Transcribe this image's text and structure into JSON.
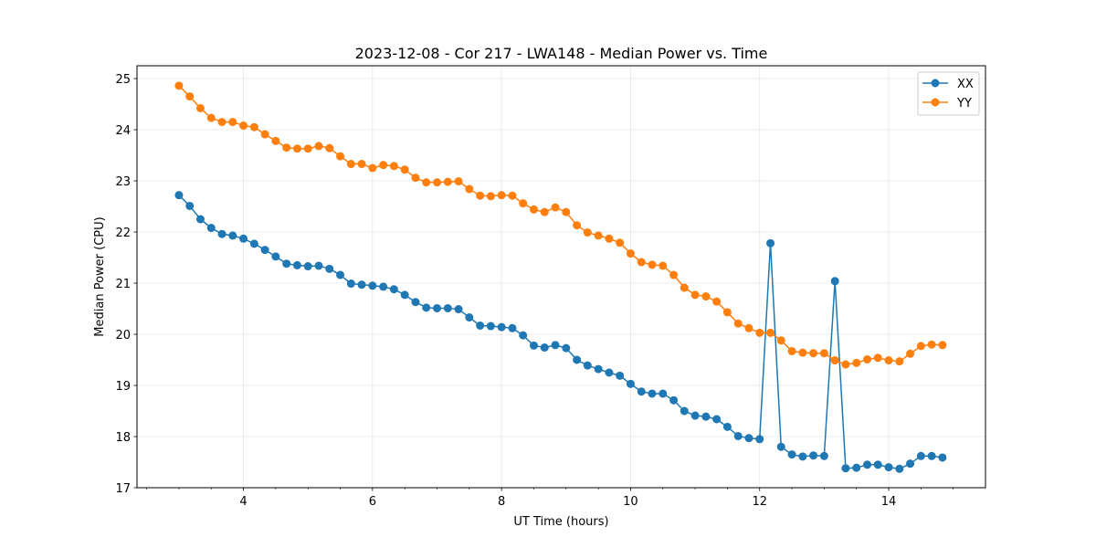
{
  "chart_data": {
    "type": "line",
    "title": "2023-12-08 - Cor 217 - LWA148 - Median Power vs. Time",
    "xlabel": "UT Time (hours)",
    "ylabel": "Median Power (CPU)",
    "xlim": [
      2.35,
      15.5
    ],
    "ylim": [
      17,
      25.25
    ],
    "xticks": [
      4,
      6,
      8,
      10,
      12,
      14
    ],
    "yticks": [
      17,
      18,
      19,
      20,
      21,
      22,
      23,
      24,
      25
    ],
    "grid": true,
    "legend_position": "top-right",
    "x": [
      3.0,
      3.167,
      3.333,
      3.5,
      3.667,
      3.833,
      4.0,
      4.167,
      4.333,
      4.5,
      4.667,
      4.833,
      5.0,
      5.167,
      5.333,
      5.5,
      5.667,
      5.833,
      6.0,
      6.167,
      6.333,
      6.5,
      6.667,
      6.833,
      7.0,
      7.167,
      7.333,
      7.5,
      7.667,
      7.833,
      8.0,
      8.167,
      8.333,
      8.5,
      8.667,
      8.833,
      9.0,
      9.167,
      9.333,
      9.5,
      9.667,
      9.833,
      10.0,
      10.167,
      10.333,
      10.5,
      10.667,
      10.833,
      11.0,
      11.167,
      11.333,
      11.5,
      11.667,
      11.833,
      12.0,
      12.167,
      12.333,
      12.5,
      12.667,
      12.833,
      13.0,
      13.167,
      13.333,
      13.5,
      13.667,
      13.833,
      14.0,
      14.167,
      14.333,
      14.5,
      14.667,
      14.833
    ],
    "series": [
      {
        "name": "XX",
        "color": "#1f77b4",
        "values": [
          22.72,
          22.51,
          22.25,
          22.08,
          21.96,
          21.93,
          21.87,
          21.77,
          21.65,
          21.52,
          21.38,
          21.35,
          21.33,
          21.34,
          21.28,
          21.16,
          20.99,
          20.97,
          20.95,
          20.93,
          20.88,
          20.77,
          20.63,
          20.52,
          20.51,
          20.51,
          20.49,
          20.33,
          20.17,
          20.16,
          20.14,
          20.12,
          19.98,
          19.78,
          19.74,
          19.79,
          19.73,
          19.5,
          19.39,
          19.32,
          19.25,
          19.19,
          19.03,
          18.88,
          18.84,
          18.84,
          18.71,
          18.5,
          18.41,
          18.39,
          18.34,
          18.19,
          18.01,
          17.97,
          17.95,
          21.78,
          17.8,
          17.65,
          17.61,
          17.63,
          17.62,
          21.04,
          17.38,
          17.39,
          17.45,
          17.45,
          17.4,
          17.37,
          17.47,
          17.62,
          17.62,
          17.59
        ]
      },
      {
        "name": "YY",
        "color": "#ff7f0e",
        "values": [
          24.86,
          24.65,
          24.42,
          24.23,
          24.15,
          24.15,
          24.08,
          24.05,
          23.91,
          23.78,
          23.65,
          23.63,
          23.63,
          23.68,
          23.64,
          23.48,
          23.33,
          23.33,
          23.25,
          23.31,
          23.29,
          23.22,
          23.06,
          22.97,
          22.97,
          22.98,
          22.99,
          22.84,
          22.71,
          22.7,
          22.72,
          22.71,
          22.56,
          22.44,
          22.39,
          22.48,
          22.39,
          22.13,
          21.99,
          21.93,
          21.87,
          21.79,
          21.58,
          21.41,
          21.36,
          21.34,
          21.16,
          20.91,
          20.77,
          20.74,
          20.64,
          20.43,
          20.21,
          20.12,
          20.03,
          20.03,
          19.88,
          19.67,
          19.64,
          19.63,
          19.63,
          19.49,
          19.41,
          19.44,
          19.51,
          19.54,
          19.49,
          19.47,
          19.62,
          19.77,
          19.8,
          19.79
        ]
      }
    ]
  }
}
